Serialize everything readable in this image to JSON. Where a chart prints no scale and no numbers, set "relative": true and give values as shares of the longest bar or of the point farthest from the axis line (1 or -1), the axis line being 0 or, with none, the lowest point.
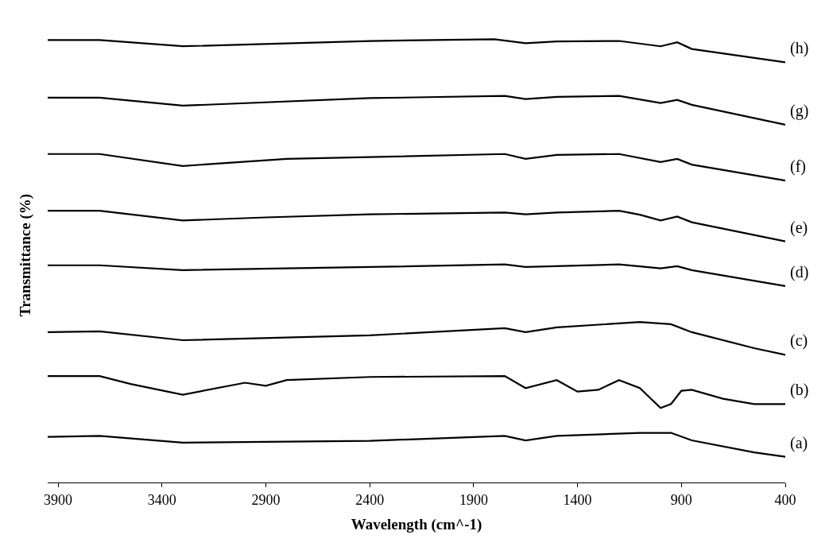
{
  "chart_data": {
    "type": "line",
    "relative": true,
    "xlabel": "Wavelength (cm^-1)",
    "ylabel": "Transmittance (%)",
    "xlim": [
      3950,
      400
    ],
    "xticks": [
      3900,
      3400,
      2900,
      2400,
      1900,
      1400,
      900,
      400
    ],
    "legend": false,
    "marker": "none",
    "line_style": "solid",
    "series": [
      {
        "name": "(a)",
        "color": "#000000",
        "x": [
          3950,
          3700,
          3300,
          2400,
          1750,
          1650,
          1500,
          1100,
          950,
          850,
          550,
          400
        ],
        "values": [
          0.103,
          0.105,
          0.09,
          0.094,
          0.105,
          0.095,
          0.105,
          0.112,
          0.112,
          0.095,
          0.068,
          0.058
        ]
      },
      {
        "name": "(b)",
        "color": "#000000",
        "x": [
          3950,
          3700,
          3550,
          3300,
          3000,
          2900,
          2800,
          2400,
          1750,
          1650,
          1500,
          1400,
          1300,
          1200,
          1100,
          1000,
          950,
          900,
          850,
          700,
          550,
          400
        ],
        "values": [
          0.24,
          0.24,
          0.222,
          0.198,
          0.225,
          0.218,
          0.231,
          0.238,
          0.24,
          0.213,
          0.231,
          0.205,
          0.209,
          0.231,
          0.213,
          0.168,
          0.177,
          0.207,
          0.209,
          0.189,
          0.177,
          0.177
        ]
      },
      {
        "name": "(c)",
        "color": "#000000",
        "x": [
          3950,
          3700,
          3300,
          2400,
          1750,
          1650,
          1500,
          1100,
          950,
          850,
          550,
          400
        ],
        "values": [
          0.339,
          0.341,
          0.321,
          0.332,
          0.348,
          0.339,
          0.35,
          0.362,
          0.357,
          0.339,
          0.303,
          0.288
        ]
      },
      {
        "name": "(d)",
        "color": "#000000",
        "x": [
          3950,
          3700,
          3300,
          2400,
          1750,
          1650,
          1200,
          1000,
          920,
          850,
          400
        ],
        "values": [
          0.49,
          0.49,
          0.479,
          0.486,
          0.492,
          0.486,
          0.492,
          0.483,
          0.488,
          0.479,
          0.443
        ]
      },
      {
        "name": "(e)",
        "color": "#000000",
        "x": [
          3950,
          3700,
          3300,
          2900,
          2400,
          1750,
          1650,
          1500,
          1200,
          1100,
          1000,
          920,
          850,
          400
        ],
        "values": [
          0.613,
          0.613,
          0.591,
          0.598,
          0.605,
          0.609,
          0.605,
          0.609,
          0.613,
          0.604,
          0.591,
          0.6,
          0.587,
          0.544
        ]
      },
      {
        "name": "(f)",
        "color": "#000000",
        "x": [
          3950,
          3700,
          3300,
          2800,
          1750,
          1650,
          1500,
          1200,
          1000,
          920,
          850,
          400
        ],
        "values": [
          0.741,
          0.741,
          0.714,
          0.73,
          0.741,
          0.73,
          0.739,
          0.741,
          0.723,
          0.73,
          0.717,
          0.681
        ]
      },
      {
        "name": "(g)",
        "color": "#000000",
        "x": [
          3950,
          3700,
          3300,
          2400,
          1750,
          1650,
          1500,
          1200,
          1000,
          920,
          850,
          400
        ],
        "values": [
          0.868,
          0.868,
          0.85,
          0.867,
          0.872,
          0.865,
          0.87,
          0.872,
          0.856,
          0.863,
          0.852,
          0.807
        ]
      },
      {
        "name": "(h)",
        "color": "#000000",
        "x": [
          3950,
          3700,
          3300,
          2400,
          1800,
          1650,
          1500,
          1200,
          1000,
          920,
          850,
          400
        ],
        "values": [
          0.998,
          0.998,
          0.984,
          0.996,
          1.0,
          0.991,
          0.995,
          0.996,
          0.984,
          0.993,
          0.978,
          0.948
        ]
      }
    ]
  }
}
